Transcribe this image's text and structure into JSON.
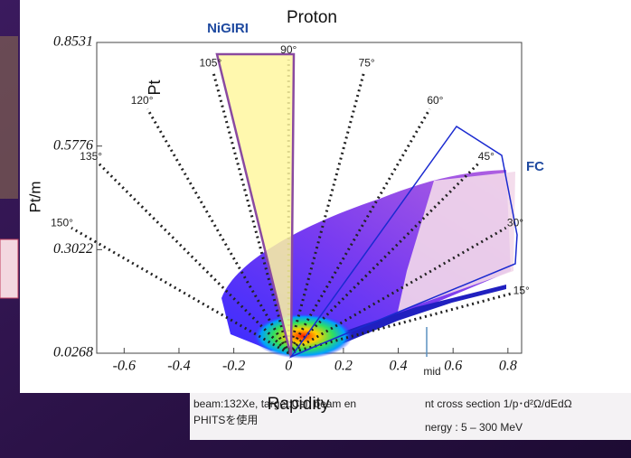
{
  "chart_data": {
    "type": "angle-map",
    "title": "Proton",
    "x_label": "Rapidity",
    "y_label": "Pt/m",
    "xlim": [
      -0.7,
      0.85
    ],
    "ylim": [
      0.0268,
      0.8531
    ],
    "xticks": [
      -0.6,
      -0.4,
      -0.2,
      0,
      0.2,
      0.4,
      0.6,
      0.8
    ],
    "yticks": [
      0.0268,
      0.3022,
      0.5776,
      0.8531
    ],
    "angles": [
      {
        "value": 150,
        "label": "150°"
      },
      {
        "value": 135,
        "label": "135°"
      },
      {
        "value": 120,
        "label": "120°"
      },
      {
        "value": 105,
        "label": "105°"
      },
      {
        "value": 90,
        "label": "90°"
      },
      {
        "value": 75,
        "label": "75°"
      },
      {
        "value": 60,
        "label": "60°"
      },
      {
        "value": 45,
        "label": "45°"
      },
      {
        "value": 30,
        "label": "30°"
      },
      {
        "value": 15,
        "label": "15°"
      }
    ],
    "annotations": {
      "nigiri": "NiGIRI",
      "fc": "FC",
      "pt": "Pt",
      "mid": "mid"
    }
  },
  "footer": {
    "left": [
      "beam:132Xe, target:CsI, beam en",
      "PHITSを使用"
    ],
    "right": [
      "nt cross section 1/p･d²Ω/dEdΩ",
      "nergy : 5 – 300 MeV"
    ]
  }
}
